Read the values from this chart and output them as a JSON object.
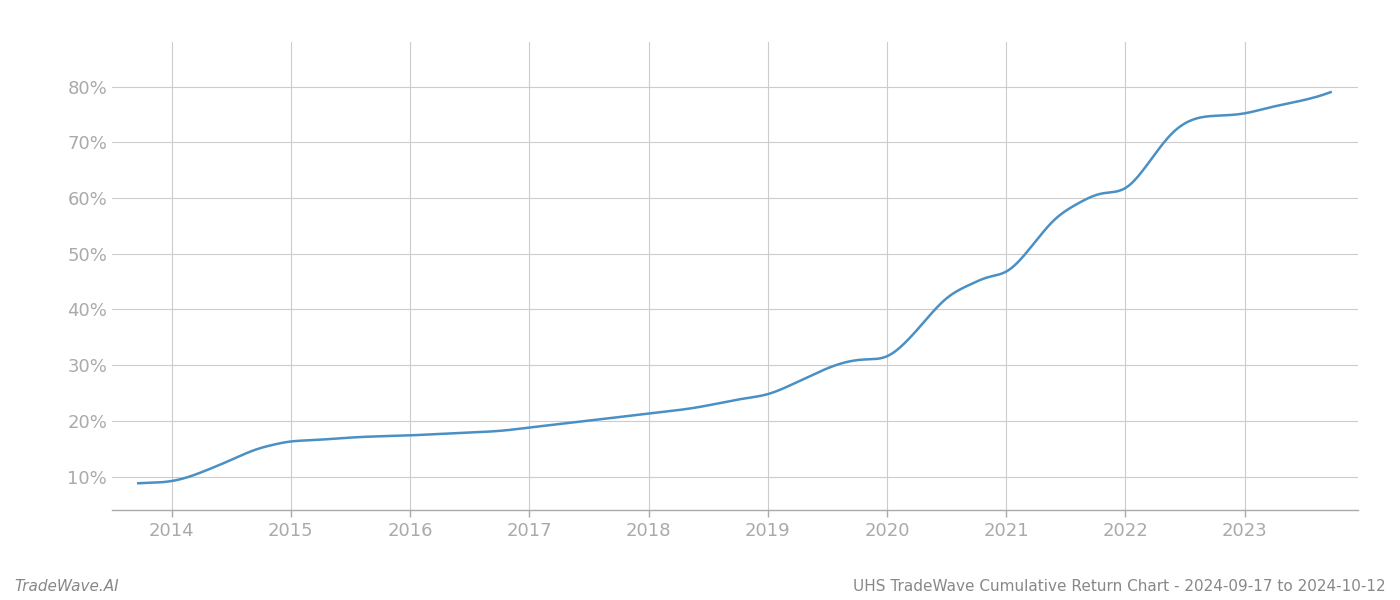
{
  "x_values": [
    2013.72,
    2013.85,
    2014.0,
    2014.15,
    2014.3,
    2014.5,
    2014.7,
    2014.85,
    2015.0,
    2015.15,
    2015.3,
    2015.5,
    2015.7,
    2015.85,
    2016.0,
    2016.2,
    2016.4,
    2016.6,
    2016.8,
    2017.0,
    2017.2,
    2017.4,
    2017.6,
    2017.8,
    2018.0,
    2018.2,
    2018.4,
    2018.6,
    2018.8,
    2019.0,
    2019.2,
    2019.4,
    2019.6,
    2019.8,
    2020.0,
    2020.15,
    2020.3,
    2020.5,
    2020.7,
    2020.85,
    2021.0,
    2021.2,
    2021.4,
    2021.6,
    2021.8,
    2022.0,
    2022.2,
    2022.4,
    2022.6,
    2022.8,
    2023.0,
    2023.2,
    2023.5,
    2023.72
  ],
  "y_values": [
    0.088,
    0.089,
    0.092,
    0.1,
    0.112,
    0.13,
    0.148,
    0.157,
    0.163,
    0.165,
    0.167,
    0.17,
    0.172,
    0.173,
    0.174,
    0.176,
    0.178,
    0.18,
    0.183,
    0.188,
    0.193,
    0.198,
    0.203,
    0.208,
    0.213,
    0.218,
    0.224,
    0.232,
    0.24,
    0.248,
    0.265,
    0.285,
    0.302,
    0.31,
    0.316,
    0.34,
    0.375,
    0.42,
    0.445,
    0.458,
    0.468,
    0.51,
    0.56,
    0.59,
    0.608,
    0.618,
    0.665,
    0.718,
    0.743,
    0.748,
    0.752,
    0.762,
    0.776,
    0.79
  ],
  "line_color": "#4a90c4",
  "line_width": 1.8,
  "background_color": "#ffffff",
  "grid_color": "#cccccc",
  "tick_color": "#aaaaaa",
  "label_color": "#aaaaaa",
  "xlim": [
    2013.5,
    2023.95
  ],
  "ylim": [
    0.04,
    0.88
  ],
  "yticks": [
    0.1,
    0.2,
    0.3,
    0.4,
    0.5,
    0.6,
    0.7,
    0.8
  ],
  "xticks": [
    2014,
    2015,
    2016,
    2017,
    2018,
    2019,
    2020,
    2021,
    2022,
    2023
  ],
  "xlabel_fontsize": 13,
  "ylabel_fontsize": 13,
  "footer_left": "TradeWave.AI",
  "footer_right": "UHS TradeWave Cumulative Return Chart - 2024-09-17 to 2024-10-12",
  "footer_fontsize": 11,
  "footer_color": "#888888"
}
